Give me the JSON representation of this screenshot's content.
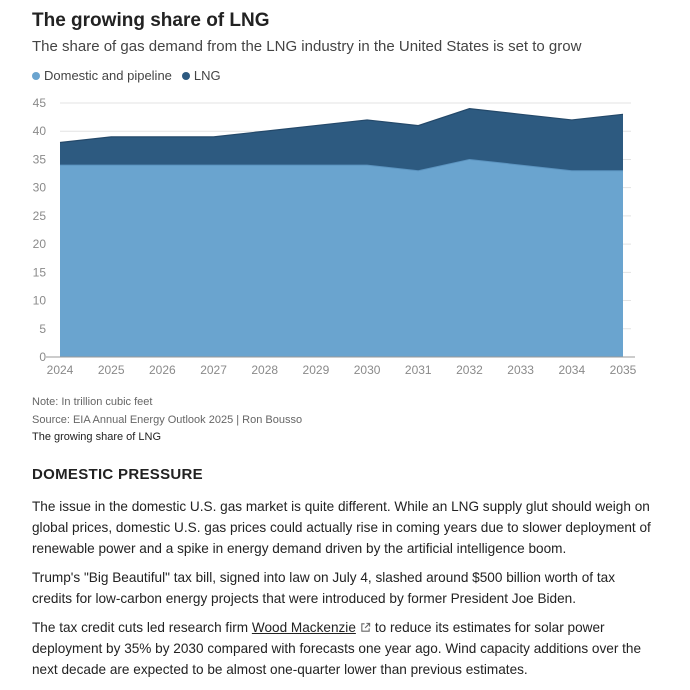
{
  "header": {
    "title": "The growing share of LNG",
    "subtitle": "The share of gas demand from the LNG industry in the United States is set to grow"
  },
  "legend": [
    {
      "label": "Domestic and pipeline",
      "color": "#6aa4cf"
    },
    {
      "label": "LNG",
      "color": "#2d5a80"
    }
  ],
  "chart_data": {
    "type": "area",
    "stacked": true,
    "x": [
      "2024",
      "2025",
      "2026",
      "2027",
      "2028",
      "2029",
      "2030",
      "2031",
      "2032",
      "2033",
      "2034",
      "2035"
    ],
    "series": [
      {
        "name": "Domestic and pipeline",
        "values": [
          34,
          34,
          34,
          34,
          34,
          34,
          34,
          33,
          35,
          34,
          33,
          33
        ],
        "color": "#6aa4cf"
      },
      {
        "name": "LNG",
        "values": [
          4,
          5,
          5,
          5,
          6,
          7,
          8,
          8,
          9,
          9,
          9,
          10
        ],
        "color": "#2d5a80"
      }
    ],
    "ylim": [
      0,
      45
    ],
    "yticks": [
      0,
      5,
      10,
      15,
      20,
      25,
      30,
      35,
      40,
      45
    ],
    "grid": true,
    "legend_position": "top-left"
  },
  "notes": {
    "note": "Note: In trillion cubic feet",
    "source": "Source: EIA Annual Energy Outlook 2025 | Ron Bousso",
    "caption": "The growing share of LNG"
  },
  "article": {
    "heading": "DOMESTIC PRESSURE",
    "p1": "The issue in the domestic U.S. gas market is quite different. While an LNG supply glut should weigh on global prices, domestic U.S. gas prices could actually rise in coming years due to slower deployment of renewable power and a spike in energy demand driven by the artificial intelligence boom.",
    "p2": "Trump's \"Big Beautiful\" tax bill, signed into law on July 4, slashed around $500 billion worth of tax credits for low-carbon energy projects that were introduced by former President Joe Biden.",
    "p3_before": "The tax credit cuts led research firm",
    "p3_link": "Wood Mackenzie",
    "p3_after": "to reduce its estimates for solar power deployment by 35% by 2030 compared with forecasts one year ago. Wind capacity additions over the next decade are expected to be almost one-quarter lower than previous estimates.",
    "icons": {
      "external_link": "external-link-icon"
    }
  }
}
